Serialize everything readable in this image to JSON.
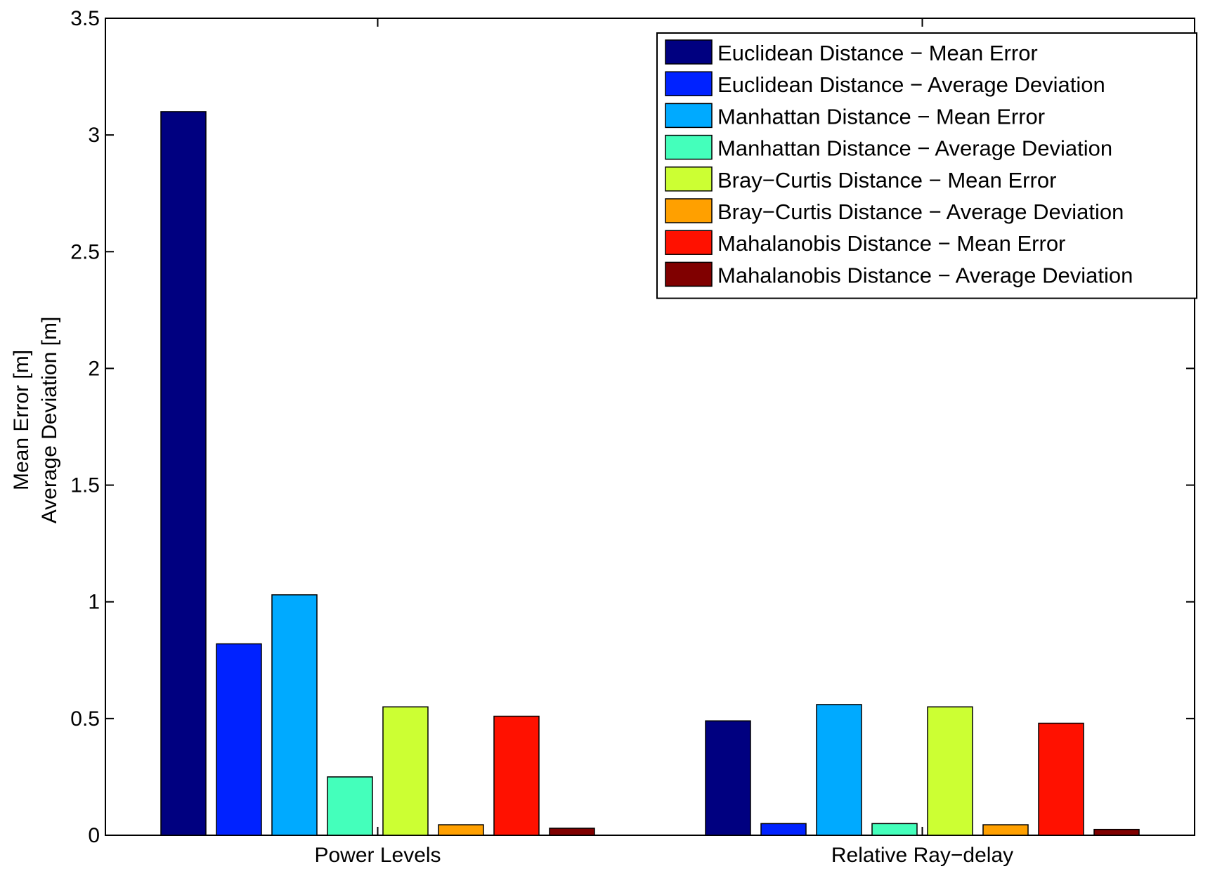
{
  "chart_data": {
    "type": "bar",
    "categories": [
      "Power Levels",
      "Relative Ray−delay"
    ],
    "ylabel_lines": [
      "Mean Error [m]",
      "Average Deviation [m]"
    ],
    "xlabel": "",
    "ylim": [
      0,
      3.5
    ],
    "yticks": [
      "0",
      "0.5",
      "1",
      "1.5",
      "2",
      "2.5",
      "3",
      "3.5"
    ],
    "grid": false,
    "legend_position": "top-right",
    "series": [
      {
        "name": "Euclidean Distance − Mean Error",
        "color": "#000080",
        "values": [
          3.1,
          0.49
        ]
      },
      {
        "name": "Euclidean Distance − Average Deviation",
        "color": "#0022ff",
        "values": [
          0.82,
          0.05
        ]
      },
      {
        "name": "Manhattan Distance − Mean Error",
        "color": "#00aaff",
        "values": [
          1.03,
          0.56
        ]
      },
      {
        "name": "Manhattan Distance − Average Deviation",
        "color": "#44ffbb",
        "values": [
          0.25,
          0.05
        ]
      },
      {
        "name": "Bray−Curtis Distance − Mean Error",
        "color": "#ccff33",
        "values": [
          0.55,
          0.55
        ]
      },
      {
        "name": "Bray−Curtis Distance − Average Deviation",
        "color": "#ffa000",
        "values": [
          0.045,
          0.045
        ]
      },
      {
        "name": "Mahalanobis Distance − Mean Error",
        "color": "#ff1100",
        "values": [
          0.51,
          0.48
        ]
      },
      {
        "name": "Mahalanobis Distance − Average Deviation",
        "color": "#800000",
        "values": [
          0.03,
          0.025
        ]
      }
    ]
  }
}
